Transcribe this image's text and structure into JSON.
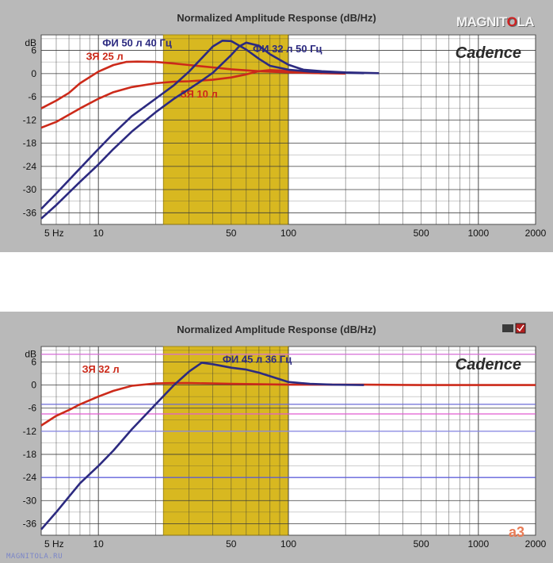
{
  "logo": {
    "text_left": "MAGNIT",
    "text_dot": "O",
    "text_right": "LA"
  },
  "watermark": "MAGNITOLA.RU",
  "corner_mark": "a3",
  "theme": {
    "panel_bg": "#b9b9b9",
    "plot_bg": "#ffffff",
    "grid": "#3a3a3a",
    "band_fill": "#d8b820",
    "band_stroke": "#a08812",
    "red_series": "#cc2a1a",
    "blue_series": "#2c2a80",
    "title_color": "#2d2d2d"
  },
  "chart_data": [
    {
      "type": "line",
      "title": "Normalized Amplitude Response (dB/Hz)",
      "brand_label": "Cadence",
      "ylabel": "dB",
      "xscale": "log",
      "xlim": [
        5,
        2000
      ],
      "ylim": [
        -39,
        10
      ],
      "xticks": [
        {
          "v": 5,
          "label": "5 Hz"
        },
        {
          "v": 10,
          "label": "10"
        },
        {
          "v": 50,
          "label": "50"
        },
        {
          "v": 100,
          "label": "100"
        },
        {
          "v": 500,
          "label": "500"
        },
        {
          "v": 1000,
          "label": "1000"
        },
        {
          "v": 2000,
          "label": "2000"
        }
      ],
      "yticks": [
        {
          "v": 8,
          "label": "dB"
        },
        {
          "v": 6,
          "label": "6"
        },
        {
          "v": 0,
          "label": "0"
        },
        {
          "v": -6,
          "label": "-6"
        },
        {
          "v": -12,
          "label": "-12"
        },
        {
          "v": -18,
          "label": "-18"
        },
        {
          "v": -24,
          "label": "-24"
        },
        {
          "v": -30,
          "label": "-30"
        },
        {
          "v": -36,
          "label": "-36"
        }
      ],
      "band": [
        22,
        100
      ],
      "grid": true,
      "series": [
        {
          "name": "ЗЯ 25 л",
          "color": "red",
          "label_at": [
            8.6,
            3.5
          ],
          "x": [
            5,
            6,
            7,
            8,
            10,
            12,
            14,
            16,
            20,
            25,
            30,
            40,
            50,
            70,
            100,
            150,
            200
          ],
          "y": [
            -9,
            -7,
            -5,
            -2.5,
            0.5,
            2.2,
            3,
            3.1,
            3,
            2.6,
            2.2,
            1.6,
            1.1,
            0.6,
            0.3,
            0.1,
            0
          ]
        },
        {
          "name": "ЗЯ 10 л",
          "color": "red",
          "label_at": [
            27,
            -6.2
          ],
          "x": [
            5,
            6,
            8,
            10,
            12,
            15,
            20,
            25,
            30,
            40,
            50,
            60,
            70,
            80,
            100,
            120,
            150
          ],
          "y": [
            -14,
            -12.5,
            -9,
            -6.5,
            -4.8,
            -3.5,
            -2.5,
            -2.1,
            -2,
            -1.6,
            -1,
            -0.2,
            0.6,
            0.9,
            0.7,
            0.3,
            0.1
          ]
        },
        {
          "name": "ФИ 50 л 40 Гц",
          "color": "blue",
          "label_at": [
            10.5,
            7
          ],
          "x": [
            5,
            6,
            8,
            10,
            12,
            15,
            20,
            25,
            30,
            35,
            40,
            45,
            50,
            60,
            70,
            80,
            100,
            130,
            170,
            250
          ],
          "y": [
            -35,
            -31,
            -24.5,
            -19.5,
            -15.5,
            -11,
            -6.5,
            -3,
            0.5,
            4,
            7,
            8.5,
            8.4,
            6.2,
            3.8,
            2,
            1,
            0.5,
            0.3,
            0.1
          ]
        },
        {
          "name": "ФИ 32 л 50 Гц",
          "color": "blue",
          "label_at": [
            65,
            5.5
          ],
          "x": [
            5,
            6,
            8,
            10,
            12,
            15,
            20,
            25,
            30,
            35,
            40,
            50,
            55,
            60,
            70,
            80,
            100,
            120,
            150,
            200,
            300
          ],
          "y": [
            -37.5,
            -34,
            -28,
            -23.5,
            -19.5,
            -15,
            -10,
            -6.5,
            -4,
            -1.8,
            0.2,
            4.8,
            7,
            8,
            7.2,
            5,
            2.3,
            1,
            0.6,
            0.3,
            0.1
          ]
        }
      ]
    },
    {
      "type": "line",
      "title": "Normalized Amplitude Response (dB/Hz)",
      "brand_label": "Cadence",
      "ylabel": "dB",
      "xscale": "log",
      "xlim": [
        5,
        2000
      ],
      "ylim": [
        -39,
        10
      ],
      "xticks": [
        {
          "v": 5,
          "label": "5 Hz"
        },
        {
          "v": 10,
          "label": "10"
        },
        {
          "v": 50,
          "label": "50"
        },
        {
          "v": 100,
          "label": "100"
        },
        {
          "v": 500,
          "label": "500"
        },
        {
          "v": 1000,
          "label": "1000"
        },
        {
          "v": 2000,
          "label": "2000"
        }
      ],
      "yticks": [
        {
          "v": 8,
          "label": "dB"
        },
        {
          "v": 6,
          "label": "6"
        },
        {
          "v": 0,
          "label": "0"
        },
        {
          "v": -6,
          "label": "-6"
        },
        {
          "v": -12,
          "label": "-12"
        },
        {
          "v": -18,
          "label": "-18"
        },
        {
          "v": -24,
          "label": "-24"
        },
        {
          "v": -30,
          "label": "-30"
        },
        {
          "v": -36,
          "label": "-36"
        }
      ],
      "band": [
        22,
        100
      ],
      "grid": true,
      "hlines": [
        {
          "y": 8,
          "color": "#d66bd6"
        },
        {
          "y": -5,
          "color": "#6b6bd6"
        },
        {
          "y": -7.5,
          "color": "#e05ad0"
        },
        {
          "y": -24,
          "color": "#5a5ae0"
        },
        {
          "y": -12,
          "color": "#8a8ae8"
        }
      ],
      "series": [
        {
          "name": "ЗЯ 32 л",
          "color": "red",
          "label_at": [
            8.2,
            3.2
          ],
          "x": [
            5,
            6,
            7,
            8,
            10,
            12,
            15,
            20,
            25,
            30,
            40,
            50,
            70,
            100,
            150,
            250,
            500,
            1000,
            2000
          ],
          "y": [
            -10.5,
            -8,
            -6.5,
            -5,
            -3,
            -1.5,
            -0.2,
            0.4,
            0.5,
            0.5,
            0.4,
            0.3,
            0.2,
            0.1,
            0.1,
            0.1,
            0,
            0,
            0
          ]
        },
        {
          "name": "ФИ 45 л 36 Гц",
          "color": "blue",
          "label_at": [
            45,
            5.8
          ],
          "x": [
            5,
            6,
            8,
            10,
            12,
            15,
            20,
            25,
            30,
            35,
            40,
            50,
            60,
            70,
            80,
            90,
            100,
            130,
            170,
            250
          ],
          "y": [
            -37.5,
            -33,
            -25.5,
            -21,
            -17,
            -11.5,
            -5,
            0,
            3.5,
            5.8,
            5.4,
            4.5,
            4,
            3.2,
            2.3,
            1.5,
            0.8,
            0.3,
            0.1,
            0
          ]
        }
      ]
    }
  ]
}
